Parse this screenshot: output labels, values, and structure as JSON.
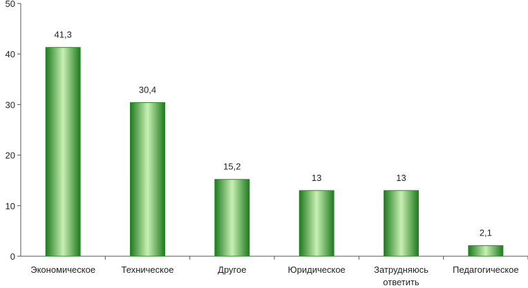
{
  "chart_data": {
    "type": "bar",
    "categories": [
      [
        "Экономическое"
      ],
      [
        "Техническое"
      ],
      [
        "Другое"
      ],
      [
        "Юридическое"
      ],
      [
        "Затрудняюсь",
        "ответить"
      ],
      [
        "Педагогическое"
      ]
    ],
    "values": [
      41.3,
      30.4,
      15.2,
      13,
      13,
      2.1
    ],
    "data_labels": [
      "41,3",
      "30,4",
      "15,2",
      "13",
      "13",
      "2,1"
    ],
    "title": "",
    "xlabel": "",
    "ylabel": "",
    "ylim": [
      0,
      50
    ],
    "yticks": [
      0,
      10,
      20,
      30,
      40,
      50
    ],
    "grid": false,
    "legend": "none",
    "colors": {
      "bar_dark": "#1e7a1e",
      "bar_light": "#c8f0b4",
      "bar_stroke": "#2a8a2a",
      "axis": "#555555"
    }
  }
}
